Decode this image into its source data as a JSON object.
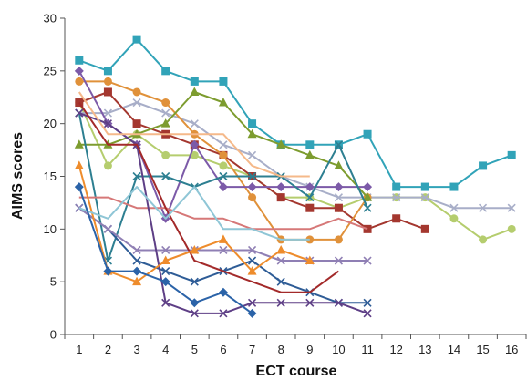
{
  "chart_data": {
    "type": "line",
    "xlabel": "ECT course",
    "ylabel": "AIMS scores",
    "categories": [
      "1",
      "2",
      "3",
      "4",
      "5",
      "6",
      "7",
      "8",
      "9",
      "10",
      "11",
      "12",
      "13",
      "14",
      "15",
      "16"
    ],
    "ylim": [
      0,
      30
    ],
    "yticks": [
      0,
      5,
      10,
      15,
      20,
      25,
      30
    ],
    "grid": false,
    "legend": "none",
    "series": [
      {
        "color": "#31a3b8",
        "marker": "square",
        "values": [
          26,
          25,
          28,
          25,
          24,
          24,
          20,
          18,
          18,
          18,
          19,
          14,
          14,
          14,
          16,
          17
        ]
      },
      {
        "color": "#b5cd6e",
        "marker": "circle",
        "values": [
          22,
          16,
          19,
          17,
          17,
          16,
          15,
          13,
          13,
          12,
          13,
          13,
          13,
          11,
          9,
          10
        ]
      },
      {
        "color": "#a8aec8",
        "marker": "x",
        "values": [
          21,
          21,
          22,
          21,
          20,
          18,
          17,
          15,
          14,
          13,
          13,
          13,
          13,
          12,
          12,
          12
        ]
      },
      {
        "color": "#a4372f",
        "marker": "square",
        "values": [
          22,
          23,
          20,
          19,
          18,
          17,
          15,
          13,
          12,
          12,
          10,
          11,
          10,
          null,
          null,
          null
        ]
      },
      {
        "color": "#e0913a",
        "marker": "circle",
        "values": [
          24,
          24,
          23,
          22,
          19,
          17,
          13,
          9,
          9,
          9,
          13,
          null,
          null,
          null,
          null,
          null
        ]
      },
      {
        "color": "#7d9c2f",
        "marker": "triangle",
        "values": [
          18,
          18,
          19,
          20,
          23,
          22,
          19,
          18,
          17,
          16,
          13,
          null,
          null,
          null,
          null,
          null
        ]
      },
      {
        "color": "#7c5aa8",
        "marker": "diamond",
        "values": [
          25,
          20,
          18,
          11,
          18,
          14,
          14,
          14,
          14,
          14,
          14,
          null,
          null,
          null,
          null,
          null
        ]
      },
      {
        "color": "#2d7f91",
        "marker": "x",
        "values": [
          21,
          7,
          15,
          15,
          14,
          15,
          15,
          15,
          13,
          18,
          12,
          null,
          null,
          null,
          null,
          null
        ]
      },
      {
        "color": "#2e5c96",
        "marker": "x",
        "values": [
          12,
          10,
          7,
          6,
          5,
          6,
          7,
          5,
          4,
          3,
          3,
          null,
          null,
          null,
          null,
          null
        ]
      },
      {
        "color": "#d67878",
        "marker": "none",
        "values": [
          13,
          13,
          12,
          12,
          11,
          11,
          10,
          10,
          10,
          11,
          10,
          null,
          null,
          null,
          null,
          null
        ]
      },
      {
        "color": "#8f7fb4",
        "marker": "x",
        "values": [
          12,
          10,
          8,
          8,
          8,
          8,
          8,
          7,
          7,
          7,
          7,
          null,
          null,
          null,
          null,
          null
        ]
      },
      {
        "color": "#5e3f86",
        "marker": "x",
        "values": [
          21,
          20,
          18,
          3,
          2,
          2,
          3,
          3,
          3,
          3,
          2,
          null,
          null,
          null,
          null,
          null
        ]
      },
      {
        "color": "#a32a2a",
        "marker": "none",
        "values": [
          22,
          18,
          18,
          12,
          7,
          6,
          5,
          4,
          4,
          6,
          null,
          null,
          null,
          null,
          null,
          null
        ]
      },
      {
        "color": "#ee8c2c",
        "marker": "triangle",
        "values": [
          16,
          6,
          5,
          7,
          8,
          9,
          6,
          8,
          7,
          null,
          null,
          null,
          null,
          null,
          null,
          null
        ]
      },
      {
        "color": "#8fc6d6",
        "marker": "none",
        "values": [
          12,
          11,
          14,
          11,
          14,
          10,
          10,
          9,
          9,
          null,
          null,
          null,
          null,
          null,
          null,
          null
        ]
      },
      {
        "color": "#f5b98a",
        "marker": "none",
        "values": [
          23,
          19,
          19,
          19,
          19,
          19,
          16,
          15,
          15,
          null,
          null,
          null,
          null,
          null,
          null,
          null
        ]
      },
      {
        "color": "#2b63a8",
        "marker": "diamond",
        "values": [
          14,
          6,
          6,
          5,
          3,
          4,
          2,
          null,
          null,
          null,
          null,
          null,
          null,
          null,
          null,
          null
        ]
      }
    ]
  }
}
